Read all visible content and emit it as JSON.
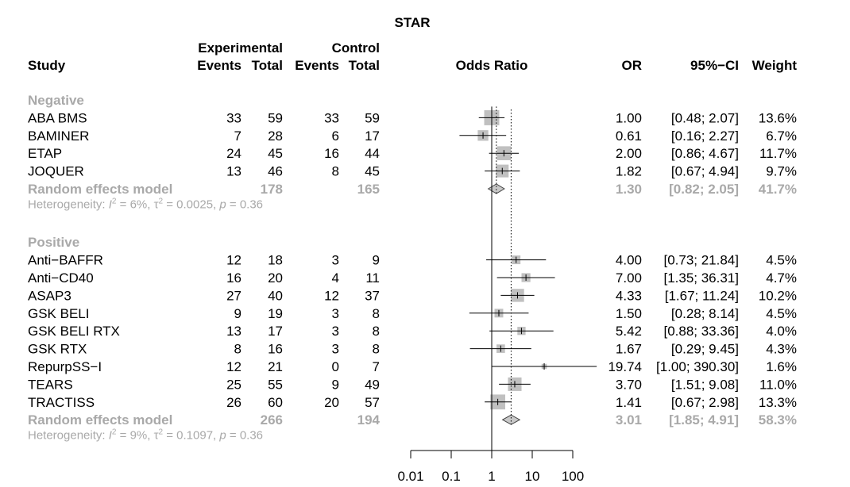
{
  "chart_data": {
    "type": "forest",
    "title": "STAR",
    "headers": {
      "study": "Study",
      "experimental": "Experimental",
      "control": "Control",
      "events": "Events",
      "total": "Total",
      "odds_ratio": "Odds Ratio",
      "or": "OR",
      "ci": "95%−CI",
      "weight": "Weight"
    },
    "x_scale": "log",
    "x_ticks": [
      0.01,
      0.1,
      1,
      10,
      100
    ],
    "x_tick_labels": [
      "0.01",
      "0.1",
      "1",
      "10",
      "100"
    ],
    "xlim": [
      0.01,
      100
    ],
    "reference_line": 1,
    "groups": [
      {
        "label": "Negative",
        "studies": [
          {
            "name": "ABA BMS",
            "exp_events": "33",
            "exp_total": "59",
            "ctrl_events": "33",
            "ctrl_total": "59",
            "or": 1.0,
            "lower": 0.48,
            "upper": 2.07,
            "or_text": "1.00",
            "ci_text": "[0.48;  2.07]",
            "weight": 13.6,
            "weight_text": "13.6%"
          },
          {
            "name": "BAMINER",
            "exp_events": "7",
            "exp_total": "28",
            "ctrl_events": "6",
            "ctrl_total": "17",
            "or": 0.61,
            "lower": 0.16,
            "upper": 2.27,
            "or_text": "0.61",
            "ci_text": "[0.16;  2.27]",
            "weight": 6.7,
            "weight_text": "6.7%"
          },
          {
            "name": "ETAP",
            "exp_events": "24",
            "exp_total": "45",
            "ctrl_events": "16",
            "ctrl_total": "44",
            "or": 2.0,
            "lower": 0.86,
            "upper": 4.67,
            "or_text": "2.00",
            "ci_text": "[0.86;  4.67]",
            "weight": 11.7,
            "weight_text": "11.7%"
          },
          {
            "name": "JOQUER",
            "exp_events": "13",
            "exp_total": "46",
            "ctrl_events": "8",
            "ctrl_total": "45",
            "or": 1.82,
            "lower": 0.67,
            "upper": 4.94,
            "or_text": "1.82",
            "ci_text": "[0.67;  4.94]",
            "weight": 9.7,
            "weight_text": "9.7%"
          }
        ],
        "summary": {
          "label": "Random effects model",
          "exp_total": "178",
          "ctrl_total": "165",
          "or": 1.3,
          "lower": 0.82,
          "upper": 2.05,
          "or_text": "1.30",
          "ci_text": "[0.82;  2.05]",
          "weight_text": "41.7%"
        },
        "heterogeneity": {
          "prefix": "Heterogeneity: ",
          "i2_label": "I",
          "i2_text": " = 6%, ",
          "tau2_label": "τ",
          "tau2_text": " = 0.0025, ",
          "p_label": "p",
          "p_text": " = 0.36"
        }
      },
      {
        "label": "Positive",
        "studies": [
          {
            "name": "Anti−BAFFR",
            "exp_events": "12",
            "exp_total": "18",
            "ctrl_events": "3",
            "ctrl_total": "9",
            "or": 4.0,
            "lower": 0.73,
            "upper": 21.84,
            "or_text": "4.00",
            "ci_text": "[0.73; 21.84]",
            "weight": 4.5,
            "weight_text": "4.5%"
          },
          {
            "name": "Anti−CD40",
            "exp_events": "16",
            "exp_total": "20",
            "ctrl_events": "4",
            "ctrl_total": "11",
            "or": 7.0,
            "lower": 1.35,
            "upper": 36.31,
            "or_text": "7.00",
            "ci_text": "[1.35; 36.31]",
            "weight": 4.7,
            "weight_text": "4.7%"
          },
          {
            "name": "ASAP3",
            "exp_events": "27",
            "exp_total": "40",
            "ctrl_events": "12",
            "ctrl_total": "37",
            "or": 4.33,
            "lower": 1.67,
            "upper": 11.24,
            "or_text": "4.33",
            "ci_text": "[1.67; 11.24]",
            "weight": 10.2,
            "weight_text": "10.2%"
          },
          {
            "name": "GSK BELI",
            "exp_events": "9",
            "exp_total": "19",
            "ctrl_events": "3",
            "ctrl_total": "8",
            "or": 1.5,
            "lower": 0.28,
            "upper": 8.14,
            "or_text": "1.50",
            "ci_text": "[0.28;  8.14]",
            "weight": 4.5,
            "weight_text": "4.5%"
          },
          {
            "name": "GSK BELI RTX",
            "exp_events": "13",
            "exp_total": "17",
            "ctrl_events": "3",
            "ctrl_total": "8",
            "or": 5.42,
            "lower": 0.88,
            "upper": 33.36,
            "or_text": "5.42",
            "ci_text": "[0.88; 33.36]",
            "weight": 4.0,
            "weight_text": "4.0%"
          },
          {
            "name": "GSK RTX",
            "exp_events": "8",
            "exp_total": "16",
            "ctrl_events": "3",
            "ctrl_total": "8",
            "or": 1.67,
            "lower": 0.29,
            "upper": 9.45,
            "or_text": "1.67",
            "ci_text": "[0.29;  9.45]",
            "weight": 4.3,
            "weight_text": "4.3%"
          },
          {
            "name": "RepurpSS−I",
            "exp_events": "12",
            "exp_total": "21",
            "ctrl_events": "0",
            "ctrl_total": "7",
            "or": 19.74,
            "lower": 1.0,
            "upper": 390.3,
            "or_text": "19.74",
            "ci_text": "[1.00; 390.30]",
            "weight": 1.6,
            "weight_text": "1.6%"
          },
          {
            "name": "TEARS",
            "exp_events": "25",
            "exp_total": "55",
            "ctrl_events": "9",
            "ctrl_total": "49",
            "or": 3.7,
            "lower": 1.51,
            "upper": 9.08,
            "or_text": "3.70",
            "ci_text": "[1.51;  9.08]",
            "weight": 11.0,
            "weight_text": "11.0%"
          },
          {
            "name": "TRACTISS",
            "exp_events": "26",
            "exp_total": "60",
            "ctrl_events": "20",
            "ctrl_total": "57",
            "or": 1.41,
            "lower": 0.67,
            "upper": 2.98,
            "or_text": "1.41",
            "ci_text": "[0.67;  2.98]",
            "weight": 13.3,
            "weight_text": "13.3%"
          }
        ],
        "summary": {
          "label": "Random effects model",
          "exp_total": "266",
          "ctrl_total": "194",
          "or": 3.01,
          "lower": 1.85,
          "upper": 4.91,
          "or_text": "3.01",
          "ci_text": "[1.85;  4.91]",
          "weight_text": "58.3%"
        },
        "heterogeneity": {
          "prefix": "Heterogeneity: ",
          "i2_label": "I",
          "i2_text": " = 9%, ",
          "tau2_label": "τ",
          "tau2_text": " = 0.1097, ",
          "p_label": "p",
          "p_text": " = 0.36"
        }
      }
    ],
    "colors": {
      "square": "#c0c0c0",
      "diamond": "#c8c8c8",
      "grey_text": "#a9a9a9",
      "line": "#000000"
    }
  }
}
